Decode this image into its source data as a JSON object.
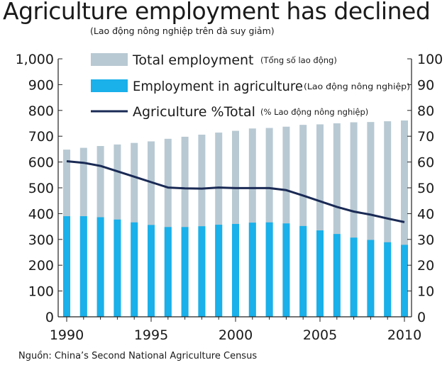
{
  "title": "Agriculture employment has declined",
  "subtitle": "(Lao động nông nghiệp trên đà suy giảm)",
  "source": "Nguồn:  China’s Second National Agriculture Census",
  "chart_data": {
    "type": "bar",
    "x": [
      1990,
      1991,
      1992,
      1993,
      1994,
      1995,
      1996,
      1997,
      1998,
      1999,
      2000,
      2001,
      2002,
      2003,
      2004,
      2005,
      2006,
      2007,
      2008,
      2009,
      2010
    ],
    "x_ticks": [
      "1990",
      "1995",
      "2000",
      "2005",
      "2010"
    ],
    "ylim_left": [
      0,
      1000
    ],
    "ylim_right": [
      0,
      100
    ],
    "y_ticks_left": [
      "0",
      "100",
      "200",
      "300",
      "400",
      "500",
      "600",
      "700",
      "800",
      "900",
      "1,000"
    ],
    "y_ticks_right": [
      "0",
      "10",
      "20",
      "30",
      "40",
      "50",
      "60",
      "70",
      "80",
      "90",
      "100"
    ],
    "grid": false,
    "legend_position": "top",
    "series": [
      {
        "name": "Total employment",
        "name_note": "(Tổng số lao động)",
        "kind": "bar",
        "axis": "left",
        "color": "#b8c9d3",
        "values": [
          648,
          655,
          662,
          668,
          674,
          680,
          690,
          698,
          706,
          714,
          721,
          730,
          732,
          737,
          744,
          746,
          750,
          754,
          755,
          758,
          761
        ]
      },
      {
        "name": "Employment in agriculture",
        "name_note": "(Lao động nông nghiệp)",
        "kind": "bar",
        "axis": "left",
        "color": "#1ab0ea",
        "values": [
          390,
          390,
          386,
          377,
          366,
          356,
          348,
          348,
          351,
          357,
          360,
          365,
          366,
          362,
          352,
          335,
          321,
          307,
          298,
          289,
          279
        ]
      },
      {
        "name": "Agriculture %Total",
        "name_note": "(% Lao động nông nghiệp)",
        "kind": "line",
        "axis": "right",
        "color": "#1a2a55",
        "values": [
          60.3,
          59.7,
          58.5,
          56.4,
          54.3,
          52.2,
          50.1,
          49.8,
          49.7,
          50.1,
          49.9,
          49.9,
          49.9,
          49.1,
          47.0,
          44.8,
          42.6,
          40.8,
          39.6,
          38.1,
          36.7
        ]
      }
    ]
  }
}
